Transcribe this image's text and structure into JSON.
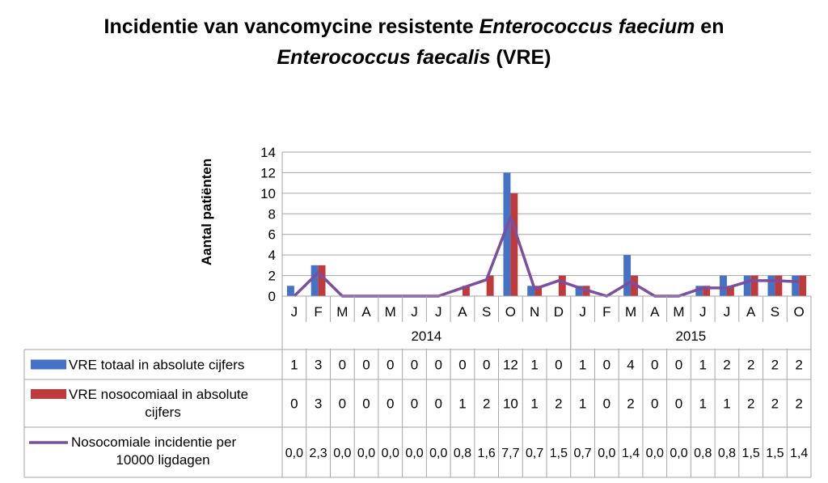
{
  "title_line1": "Incidentie van vancomycine resistente ",
  "title_italic1": "Enterococcus faecium",
  "title_mid": " en",
  "title_italic2": "Enterococcus faecalis",
  "title_end": " (VRE)",
  "chart_data": {
    "type": "bar+line",
    "ylabel": "Aantal patiënten",
    "ylim": [
      0,
      14
    ],
    "yticks": [
      0,
      2,
      4,
      6,
      8,
      10,
      12,
      14
    ],
    "grid": true,
    "categories": [
      "J",
      "F",
      "M",
      "A",
      "M",
      "J",
      "J",
      "A",
      "S",
      "O",
      "N",
      "D",
      "J",
      "F",
      "M",
      "A",
      "M",
      "J",
      "J",
      "A",
      "S",
      "O"
    ],
    "years": [
      {
        "label": "2014",
        "span": 12
      },
      {
        "label": "2015",
        "span": 10
      }
    ],
    "series": [
      {
        "name": "VRE totaal in absolute cijfers",
        "kind": "bar",
        "color": "#4472C4",
        "values": [
          1,
          3,
          0,
          0,
          0,
          0,
          0,
          0,
          0,
          12,
          1,
          0,
          1,
          0,
          4,
          0,
          0,
          1,
          2,
          2,
          2,
          2
        ]
      },
      {
        "name": "VRE nosocomiaal in absolute cijfers",
        "kind": "bar",
        "color": "#C0393B",
        "values": [
          0,
          3,
          0,
          0,
          0,
          0,
          0,
          1,
          2,
          10,
          1,
          2,
          1,
          0,
          2,
          0,
          0,
          1,
          1,
          2,
          2,
          2
        ]
      },
      {
        "name": "Nosocomiale incidentie per 10000 ligdagen",
        "kind": "line",
        "color": "#7a4fa0",
        "values": [
          "0,0",
          "2,3",
          "0,0",
          "0,0",
          "0,0",
          "0,0",
          "0,0",
          "0,8",
          "1,6",
          "7,7",
          "0,7",
          "1,5",
          "0,7",
          "0,0",
          "1,4",
          "0,0",
          "0,0",
          "0,8",
          "0,8",
          "1,5",
          "1,5",
          "1,4"
        ]
      }
    ]
  }
}
